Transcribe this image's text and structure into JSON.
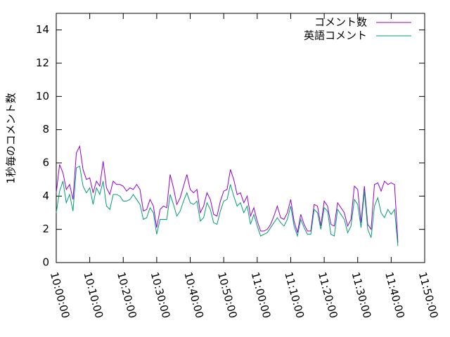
{
  "chart_data": {
    "type": "line",
    "y_label": "1秒毎のコメント数",
    "x": [
      "10:00:00",
      "10:01:00",
      "10:02:00",
      "10:03:00",
      "10:04:00",
      "10:05:00",
      "10:06:00",
      "10:07:00",
      "10:08:00",
      "10:09:00",
      "10:10:00",
      "10:11:00",
      "10:12:00",
      "10:13:00",
      "10:14:00",
      "10:15:00",
      "10:16:00",
      "10:17:00",
      "10:18:00",
      "10:19:00",
      "10:20:00",
      "10:21:00",
      "10:22:00",
      "10:23:00",
      "10:24:00",
      "10:25:00",
      "10:26:00",
      "10:27:00",
      "10:28:00",
      "10:29:00",
      "10:30:00",
      "10:31:00",
      "10:32:00",
      "10:33:00",
      "10:34:00",
      "10:35:00",
      "10:36:00",
      "10:37:00",
      "10:38:00",
      "10:39:00",
      "10:40:00",
      "10:41:00",
      "10:42:00",
      "10:43:00",
      "10:44:00",
      "10:45:00",
      "10:46:00",
      "10:47:00",
      "10:48:00",
      "10:49:00",
      "10:50:00",
      "10:51:00",
      "10:52:00",
      "10:53:00",
      "10:54:00",
      "10:55:00",
      "10:56:00",
      "10:57:00",
      "10:58:00",
      "10:59:00",
      "11:00:00",
      "11:01:00",
      "11:02:00",
      "11:03:00",
      "11:04:00",
      "11:05:00",
      "11:06:00",
      "11:07:00",
      "11:08:00",
      "11:09:00",
      "11:10:00",
      "11:11:00",
      "11:12:00",
      "11:13:00",
      "11:14:00",
      "11:15:00",
      "11:16:00",
      "11:17:00",
      "11:18:00",
      "11:19:00",
      "11:20:00",
      "11:21:00",
      "11:22:00",
      "11:23:00",
      "11:24:00",
      "11:25:00",
      "11:26:00",
      "11:27:00",
      "11:28:00",
      "11:29:00",
      "11:30:00",
      "11:31:00",
      "11:32:00",
      "11:33:00",
      "11:34:00",
      "11:35:00",
      "11:36:00",
      "11:37:00",
      "11:38:00",
      "11:39:00",
      "11:40:00",
      "11:41:00",
      "11:42:00"
    ],
    "series": [
      {
        "name": "コメント数",
        "color": "#9400d3",
        "values": [
          4.2,
          5.9,
          5.4,
          4.4,
          4.7,
          3.8,
          6.6,
          7.0,
          5.6,
          5.0,
          5.1,
          4.2,
          4.9,
          4.6,
          6.1,
          4.5,
          4.1,
          4.9,
          4.7,
          4.7,
          4.6,
          4.3,
          4.5,
          4.4,
          4.7,
          4.4,
          3.1,
          3.2,
          3.8,
          3.4,
          2.1,
          3.2,
          3.4,
          3.3,
          5.3,
          4.5,
          3.5,
          3.9,
          4.6,
          5.3,
          4.4,
          4.2,
          4.4,
          3.0,
          3.4,
          4.2,
          3.8,
          2.9,
          2.8,
          3.7,
          4.3,
          4.4,
          5.6,
          5.0,
          4.1,
          4.2,
          3.6,
          4.0,
          2.8,
          3.3,
          2.5,
          1.9,
          1.9,
          2.0,
          2.3,
          2.8,
          3.4,
          2.7,
          2.6,
          3.0,
          3.8,
          2.5,
          1.8,
          2.9,
          2.3,
          1.9,
          1.9,
          3.5,
          3.4,
          2.2,
          3.7,
          3.4,
          2.3,
          2.2,
          3.6,
          3.3,
          3.0,
          2.2,
          2.6,
          4.6,
          4.4,
          2.4,
          4.6,
          2.3,
          2.0,
          4.7,
          4.8,
          4.3,
          4.9,
          4.7,
          4.8,
          4.7,
          1.2
        ]
      },
      {
        "name": "英語コメント",
        "color": "#009e73",
        "values": [
          3.0,
          4.3,
          4.9,
          3.6,
          4.1,
          3.1,
          5.7,
          5.8,
          4.6,
          4.2,
          4.5,
          3.5,
          4.5,
          4.1,
          4.9,
          3.4,
          3.2,
          4.1,
          4.1,
          4.0,
          3.7,
          3.7,
          3.8,
          4.1,
          3.8,
          3.5,
          2.6,
          2.7,
          3.3,
          3.0,
          1.7,
          2.6,
          2.6,
          2.6,
          4.1,
          3.5,
          2.8,
          3.1,
          3.7,
          4.2,
          3.6,
          3.5,
          3.7,
          2.5,
          2.7,
          3.6,
          3.2,
          2.4,
          2.3,
          3.1,
          3.7,
          3.8,
          4.7,
          4.0,
          3.4,
          3.6,
          3.0,
          3.4,
          2.3,
          2.9,
          2.2,
          1.6,
          1.7,
          1.8,
          2.1,
          2.4,
          2.7,
          2.4,
          2.2,
          2.6,
          3.4,
          2.2,
          1.6,
          2.6,
          2.1,
          1.7,
          1.7,
          3.2,
          3.0,
          2.0,
          3.3,
          3.1,
          1.7,
          1.6,
          3.2,
          2.9,
          2.6,
          1.8,
          2.2,
          3.8,
          3.5,
          2.1,
          4.3,
          2.0,
          1.5,
          3.4,
          3.9,
          3.0,
          2.7,
          3.2,
          2.9,
          3.2,
          1.0
        ]
      }
    ],
    "xlim": [
      "10:00:00",
      "11:50:00"
    ],
    "xticks": [
      "10:00:00",
      "10:10:00",
      "10:20:00",
      "10:30:00",
      "10:40:00",
      "10:50:00",
      "11:00:00",
      "11:10:00",
      "11:20:00",
      "11:30:00",
      "11:40:00",
      "11:50:00"
    ],
    "ylim": [
      0,
      15
    ],
    "yticks": [
      0,
      2,
      4,
      6,
      8,
      10,
      12,
      14
    ],
    "legend": "top-right"
  }
}
